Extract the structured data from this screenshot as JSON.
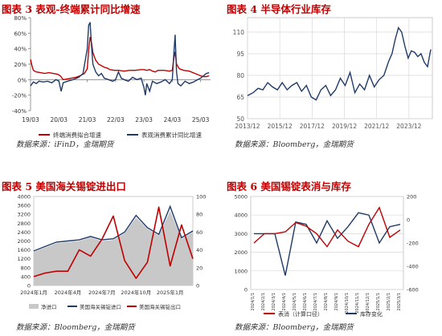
{
  "page_title": "",
  "charts": [
    {
      "title": "图表 3 表观-终端累计同比增速",
      "source": "数据来源：iFinD，金瑞期货",
      "chart_data": {
        "type": "line",
        "x_ticks": [
          "19/03",
          "20/03",
          "21/03",
          "22/03",
          "23/03",
          "24/03",
          "25/03"
        ],
        "y_ticks": [
          "-40%",
          "-20%",
          "0%",
          "20%",
          "40%",
          "60%",
          "80%"
        ],
        "ylim": [
          -40,
          80
        ],
        "grid": false,
        "legend_position": "bottom",
        "series": [
          {
            "name": "终端消费拟合增速",
            "color": "#c00000",
            "x": [
              2019.0,
              2019.05,
              2019.1,
              2019.2,
              2019.35,
              2019.5,
              2019.65,
              2019.8,
              2019.95,
              2020.05,
              2020.15,
              2020.3,
              2020.45,
              2020.6,
              2020.75,
              2020.9,
              2021.0,
              2021.05,
              2021.1,
              2021.15,
              2021.2,
              2021.3,
              2021.4,
              2021.5,
              2021.6,
              2021.7,
              2021.8,
              2021.95,
              2022.1,
              2022.3,
              2022.5,
              2022.7,
              2022.9,
              2023.0,
              2023.1,
              2023.2,
              2023.3,
              2023.4,
              2023.5,
              2023.7,
              2023.9,
              2024.0,
              2024.05,
              2024.1,
              2024.15,
              2024.25,
              2024.4,
              2024.6,
              2024.8,
              2025.0,
              2025.1,
              2025.2,
              2025.3
            ],
            "y": [
              26,
              18,
              12,
              10,
              9,
              8,
              9,
              8,
              7,
              5,
              0,
              1,
              2,
              3,
              5,
              8,
              14,
              38,
              55,
              48,
              35,
              25,
              20,
              18,
              16,
              15,
              13,
              12,
              12,
              11,
              12,
              12,
              13,
              13,
              12,
              13,
              11,
              10,
              12,
              12,
              11,
              12,
              26,
              36,
              20,
              14,
              12,
              11,
              8,
              5,
              4,
              4,
              5
            ]
          },
          {
            "name": "表观消费累计同比增速",
            "color": "#1f3a68",
            "x": [
              2019.0,
              2019.1,
              2019.2,
              2019.3,
              2019.45,
              2019.6,
              2019.75,
              2019.9,
              2020.0,
              2020.08,
              2020.15,
              2020.3,
              2020.5,
              2020.7,
              2020.85,
              2021.0,
              2021.05,
              2021.1,
              2021.15,
              2021.2,
              2021.3,
              2021.4,
              2021.5,
              2021.6,
              2021.75,
              2021.9,
              2022.0,
              2022.1,
              2022.2,
              2022.3,
              2022.45,
              2022.6,
              2022.75,
              2022.9,
              2023.0,
              2023.05,
              2023.1,
              2023.2,
              2023.3,
              2023.45,
              2023.6,
              2023.75,
              2023.9,
              2024.0,
              2024.05,
              2024.1,
              2024.15,
              2024.2,
              2024.3,
              2024.45,
              2024.6,
              2024.75,
              2024.9,
              2025.0,
              2025.1,
              2025.2,
              2025.3
            ],
            "y": [
              -8,
              -3,
              -5,
              -2,
              -3,
              -2,
              -4,
              0,
              -2,
              -15,
              -4,
              -2,
              0,
              3,
              8,
              40,
              70,
              74,
              45,
              20,
              10,
              5,
              8,
              2,
              0,
              -2,
              0,
              10,
              2,
              0,
              -2,
              3,
              0,
              2,
              -10,
              -20,
              -5,
              -15,
              -2,
              -5,
              -3,
              0,
              -5,
              0,
              30,
              58,
              10,
              -5,
              -8,
              -2,
              -5,
              -3,
              0,
              2,
              5,
              8,
              9
            ]
          }
        ]
      }
    },
    {
      "title": "图表 4 半导体行业库存",
      "source": "数据来源：Bloomberg，金瑞期货",
      "chart_data": {
        "type": "line",
        "x_ticks": [
          "2013/12",
          "2015/12",
          "2017/12",
          "2019/12",
          "2021/12",
          "2023/12"
        ],
        "y_ticks": [
          "50",
          "65",
          "80",
          "95",
          "110"
        ],
        "ylim": [
          50,
          120
        ],
        "grid": true,
        "series": [
          {
            "name": "",
            "color": "#1f3a68",
            "x": [
              2013.95,
              2014.3,
              2014.6,
              2014.9,
              2015.2,
              2015.5,
              2015.8,
              2016.1,
              2016.4,
              2016.7,
              2017.0,
              2017.3,
              2017.6,
              2017.9,
              2018.2,
              2018.5,
              2018.8,
              2019.1,
              2019.4,
              2019.7,
              2020.0,
              2020.3,
              2020.6,
              2020.9,
              2021.2,
              2021.5,
              2021.8,
              2022.1,
              2022.4,
              2022.7,
              2022.9,
              2023.1,
              2023.3,
              2023.5,
              2023.7,
              2023.9,
              2024.1,
              2024.3,
              2024.5,
              2024.7,
              2024.9,
              2025.1,
              2025.3
            ],
            "y": [
              66,
              68,
              71,
              70,
              75,
              72,
              70,
              75,
              70,
              73,
              75,
              69,
              73,
              65,
              63,
              70,
              73,
              66,
              70,
              78,
              73,
              82,
              68,
              74,
              70,
              80,
              72,
              77,
              80,
              90,
              95,
              105,
              113,
              110,
              100,
              92,
              97,
              96,
              93,
              95,
              89,
              86,
              98
            ]
          }
        ]
      }
    },
    {
      "title": "图表 5 美国海关锡锭进出口",
      "source": "数据来源：Bloomberg，金瑞期货",
      "chart_data": {
        "type": "area",
        "x_ticks": [
          "2024年1月",
          "2024年4月",
          "2024年7月",
          "2024年10月",
          "2025年1月"
        ],
        "y_left_ticks": [
          "0",
          "400",
          "800",
          "1200",
          "1600",
          "2000",
          "2400",
          "2800",
          "3200",
          "3600",
          "4000"
        ],
        "y_right_ticks": [
          "0",
          "20",
          "40",
          "60",
          "80",
          "100"
        ],
        "y_left_lim": [
          0,
          4000
        ],
        "y_right_lim": [
          0,
          100
        ],
        "grid": false,
        "legend_position": "bottom",
        "categories": [
          "2024年1月",
          "2024年2月",
          "2024年3月",
          "2024年4月",
          "2024年5月",
          "2024年6月",
          "2024年7月",
          "2024年8月",
          "2024年9月",
          "2024年10月",
          "2024年11月",
          "2024年12月",
          "2025年1月",
          "2025年2月",
          "2025年3月"
        ],
        "series": [
          {
            "name": "净进口",
            "axis": "left",
            "color": "#c8c8c8",
            "values": [
              1500,
              1700,
              1900,
              1950,
              2000,
              2150,
              2000,
              2050,
              2350,
              3050,
              2550,
              2250,
              3350,
              2100,
              2400
            ]
          },
          {
            "name": "美国海关锡锭进口",
            "axis": "left",
            "color": "#1f3a68",
            "values": [
              1550,
              1750,
              1950,
              2000,
              2050,
              2200,
              2050,
              2100,
              2400,
              3150,
              2600,
              2300,
              3550,
              2150,
              2450
            ]
          },
          {
            "name": "美国海关锡锭出口",
            "axis": "right",
            "color": "#c00000",
            "values": [
              10,
              14,
              16,
              16,
              40,
              33,
              52,
              78,
              28,
              8,
              26,
              88,
              22,
              68,
              30
            ]
          }
        ]
      }
    },
    {
      "title": "图表 6 美国锡锭表消与库存",
      "source": "数据来源：Bloomberg，金瑞期货",
      "chart_data": {
        "type": "line",
        "x_ticks": [
          "2024/1/1",
          "2024/2/1",
          "2024/3/1",
          "2024/4/1",
          "2024/5/1",
          "2024/6/1",
          "2024/7/1",
          "2024/8/1",
          "2024/9/1",
          "2024/10/1",
          "2024/11/1",
          "2024/12/1",
          "2025/1/1",
          "2025/2/1",
          "2025/3/1"
        ],
        "y_left_ticks": [
          "0",
          "1000",
          "2000",
          "3000",
          "4000",
          "5000"
        ],
        "y_right_ticks": [
          "-600",
          "-400",
          "-200",
          "0",
          "200"
        ],
        "y_left_lim": [
          0,
          5000
        ],
        "y_right_lim": [
          -600,
          200
        ],
        "grid": true,
        "legend_position": "bottom",
        "categories": [
          "2024/1/1",
          "2024/2/1",
          "2024/3/1",
          "2024/4/1",
          "2024/5/1",
          "2024/6/1",
          "2024/7/1",
          "2024/8/1",
          "2024/9/1",
          "2024/10/1",
          "2024/11/1",
          "2024/12/1",
          "2025/1/1",
          "2025/2/1",
          "2025/3/1"
        ],
        "series": [
          {
            "name": "表消（计算口径）",
            "axis": "left",
            "color": "#c00000",
            "values": [
              2500,
              3000,
              3000,
              3100,
              3600,
              3400,
              3000,
              2300,
              3200,
              2600,
              2300,
              3500,
              4400,
              2800,
              3200
            ]
          },
          {
            "name": "库存变化",
            "axis": "right",
            "color": "#1f3a68",
            "values": [
              -120,
              -120,
              -120,
              -480,
              -20,
              -40,
              -200,
              -10,
              -160,
              -60,
              60,
              40,
              -200,
              -60,
              -40
            ]
          }
        ]
      }
    }
  ]
}
